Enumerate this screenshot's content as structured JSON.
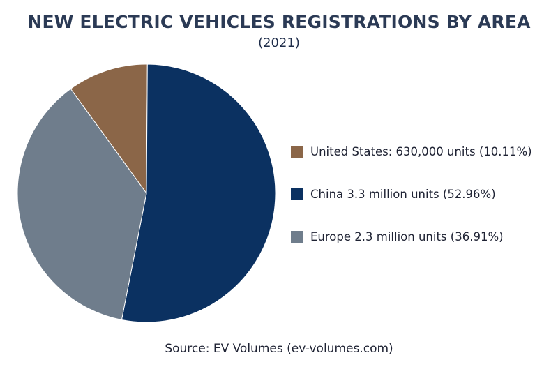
{
  "chart_data": {
    "type": "pie",
    "title": "NEW ELECTRIC VEHICLES REGISTRATIONS BY AREA",
    "subtitle": "(2021)",
    "source": "Source: EV Volumes (ev-volumes.com)",
    "legend_position": "right",
    "slices": [
      {
        "label": "United States: 630,000 units (10.11%)",
        "value": 10.11,
        "color": "#8b6648"
      },
      {
        "label": "China 3.3 million units (52.96%)",
        "value": 52.96,
        "color": "#0b3161"
      },
      {
        "label": "Europe 2.3 million units (36.91%)",
        "value": 36.91,
        "color": "#6f7d8c"
      }
    ]
  }
}
